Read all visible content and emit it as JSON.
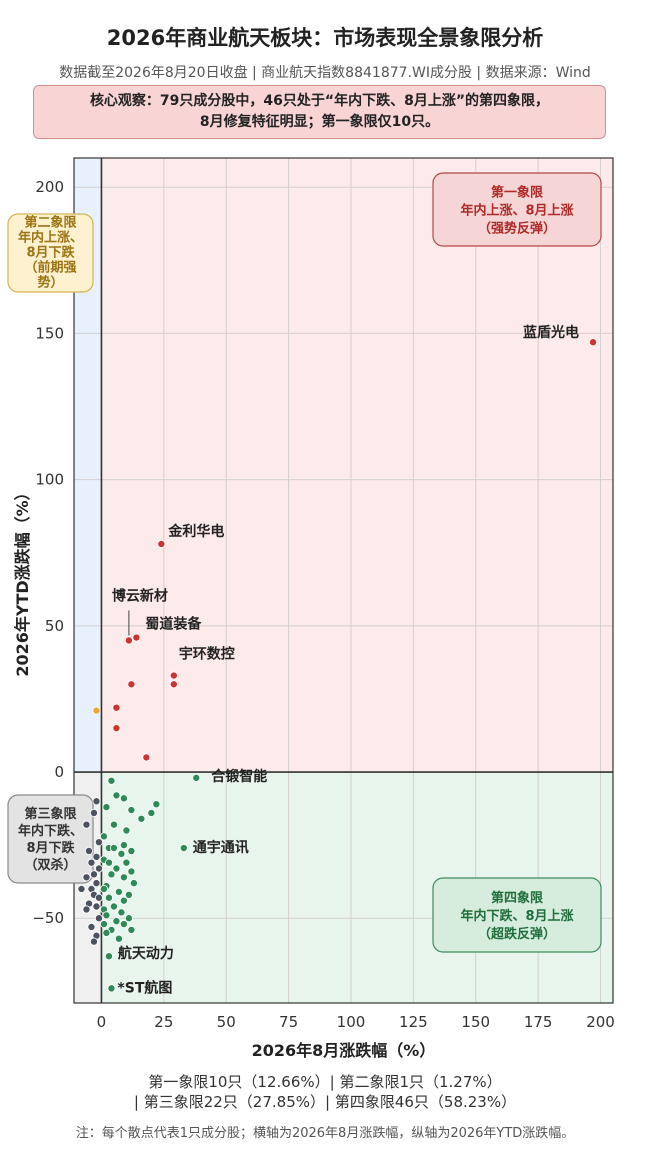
{
  "title": "2026年商业航天板块：市场表现全景象限分析",
  "subtitle": "数据截至2026年8月20日收盘 | 商业航天指数8841877.WI成分股 | 数据来源：Wind",
  "insight": {
    "line1": "核心观察：79只成分股中，46只处于“年内下跌、8月上涨”的第四象限，",
    "line2": "8月修复特征明显；第一象限仅10只。"
  },
  "stats": {
    "line1": "第一象限10只（12.66%）| 第二象限1只（1.27%）",
    "line2": "| 第三象限22只（27.85%）| 第四象限46只（58.23%）"
  },
  "note": "注：每个散点代表1只成分股；横轴为2026年8月涨跌幅，纵轴为2026年YTD涨跌幅。",
  "colors": {
    "q1": "#cc3333",
    "q2": "#e6a93a",
    "q3": "#4d5260",
    "q4": "#2e8b57",
    "q1_bg": "#fdeaea",
    "q2_bg": "#e8f0fb",
    "q3_bg": "#f0f0f0",
    "q4_bg": "#e8f5ec"
  },
  "chart_data": {
    "type": "scatter",
    "xlabel": "2026年8月涨跌幅（%）",
    "ylabel": "2026年YTD涨跌幅（%）",
    "xlim": [
      -11,
      205
    ],
    "ylim": [
      -79,
      210
    ],
    "xticks": [
      0,
      25,
      50,
      75,
      100,
      125,
      150,
      175,
      200
    ],
    "yticks": [
      -50,
      0,
      50,
      100,
      150,
      200
    ],
    "grid": true,
    "quadrant_labels": [
      {
        "quadrant": "q1",
        "lines": [
          "第一象限",
          "年内上涨、8月上涨",
          "（强势反弹）"
        ]
      },
      {
        "quadrant": "q2",
        "lines": [
          "第二象限",
          "年内上涨、",
          "8月下跌",
          "（前期强",
          "势）"
        ]
      },
      {
        "quadrant": "q3",
        "lines": [
          "第三象限",
          "年内下跌、",
          "8月下跌",
          "（双杀）"
        ]
      },
      {
        "quadrant": "q4",
        "lines": [
          "第四象限",
          "年内下跌、8月上涨",
          "（超跌反弹）"
        ]
      }
    ],
    "annotations": [
      {
        "text": "蓝盾光电",
        "x": 197,
        "y": 147
      },
      {
        "text": "金利华电",
        "x": 24,
        "y": 78
      },
      {
        "text": "博云新材",
        "x": 11,
        "y": 45
      },
      {
        "text": "蜀道装备",
        "x": 14,
        "y": 46
      },
      {
        "text": "宇环数控",
        "x": 29,
        "y": 33
      },
      {
        "text": "合锻智能",
        "x": 38,
        "y": -2
      },
      {
        "text": "通宇通讯",
        "x": 33,
        "y": -26
      },
      {
        "text": "航天动力",
        "x": 3,
        "y": -63
      },
      {
        "text": "*ST航图",
        "x": 4,
        "y": -74
      }
    ],
    "series": [
      {
        "quadrant": "q1",
        "points": [
          [
            197,
            147
          ],
          [
            24,
            78
          ],
          [
            11,
            45
          ],
          [
            14,
            46
          ],
          [
            29,
            33
          ],
          [
            29,
            30
          ],
          [
            12,
            30
          ],
          [
            6,
            22
          ],
          [
            6,
            15
          ],
          [
            18,
            5
          ]
        ]
      },
      {
        "quadrant": "q2",
        "points": [
          [
            -2,
            21
          ]
        ]
      },
      {
        "quadrant": "q3",
        "points": [
          [
            -2,
            -10
          ],
          [
            -3,
            -14
          ],
          [
            -6,
            -18
          ],
          [
            -1,
            -24
          ],
          [
            -5,
            -27
          ],
          [
            -2,
            -29
          ],
          [
            -4,
            -31
          ],
          [
            -1,
            -33
          ],
          [
            -3,
            -35
          ],
          [
            -6,
            -36
          ],
          [
            -2,
            -38
          ],
          [
            -8,
            -40
          ],
          [
            -4,
            -40
          ],
          [
            -3,
            -42
          ],
          [
            -1,
            -43
          ],
          [
            -5,
            -45
          ],
          [
            -2,
            -46
          ],
          [
            -6,
            -47
          ],
          [
            -1,
            -50
          ],
          [
            -4,
            -53
          ],
          [
            -2,
            -56
          ],
          [
            -3,
            -58
          ]
        ]
      },
      {
        "quadrant": "q4",
        "points": [
          [
            38,
            -2
          ],
          [
            33,
            -26
          ],
          [
            3,
            -63
          ],
          [
            4,
            -74
          ],
          [
            4,
            -3
          ],
          [
            6,
            -8
          ],
          [
            9,
            -9
          ],
          [
            22,
            -11
          ],
          [
            20,
            -14
          ],
          [
            2,
            -12
          ],
          [
            12,
            -13
          ],
          [
            16,
            -16
          ],
          [
            5,
            -18
          ],
          [
            10,
            -20
          ],
          [
            1,
            -22
          ],
          [
            3,
            -26
          ],
          [
            5,
            -26
          ],
          [
            9,
            -25
          ],
          [
            12,
            -27
          ],
          [
            8,
            -28
          ],
          [
            1,
            -30
          ],
          [
            3,
            -31
          ],
          [
            10,
            -31
          ],
          [
            6,
            -33
          ],
          [
            4,
            -35
          ],
          [
            12,
            -34
          ],
          [
            9,
            -36
          ],
          [
            13,
            -38
          ],
          [
            2,
            -39
          ],
          [
            1,
            -40
          ],
          [
            7,
            -41
          ],
          [
            11,
            -42
          ],
          [
            3,
            -43
          ],
          [
            9,
            -44
          ],
          [
            5,
            -46
          ],
          [
            1,
            -47
          ],
          [
            8,
            -48
          ],
          [
            2,
            -49
          ],
          [
            11,
            -50
          ],
          [
            6,
            -51
          ],
          [
            1,
            -52
          ],
          [
            9,
            -52
          ],
          [
            4,
            -54
          ],
          [
            12,
            -54
          ],
          [
            2,
            -55
          ],
          [
            7,
            -57
          ]
        ]
      }
    ]
  }
}
